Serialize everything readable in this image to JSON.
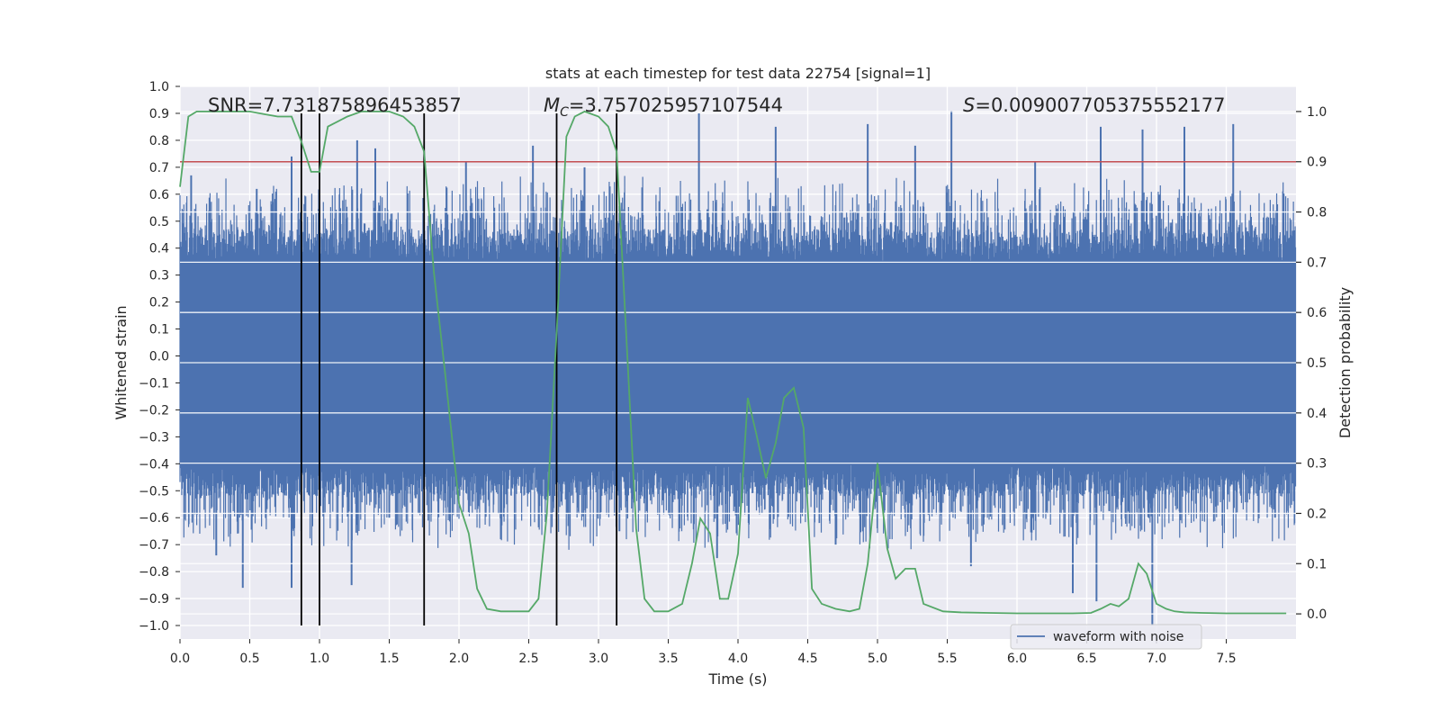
{
  "chart_data": {
    "type": "line",
    "title": "stats at each timestep for test data 22754 [signal=1]",
    "xlabel": "Time (s)",
    "ylabel_left": "Whitened strain",
    "ylabel_right": "Detection probability",
    "xlim": [
      0.0,
      8.0
    ],
    "ylim_left": [
      -1.05,
      1.0
    ],
    "ylim_right": [
      -0.05,
      1.05
    ],
    "grid": true,
    "x_ticks": [
      0.0,
      0.5,
      1.0,
      1.5,
      2.0,
      2.5,
      3.0,
      3.5,
      4.0,
      4.5,
      5.0,
      5.5,
      6.0,
      6.5,
      7.0,
      7.5
    ],
    "x_tick_labels": [
      "0.0",
      "0.5",
      "1.0",
      "1.5",
      "2.0",
      "2.5",
      "3.0",
      "3.5",
      "4.0",
      "4.5",
      "5.0",
      "5.5",
      "6.0",
      "6.5",
      "7.0",
      "7.5"
    ],
    "y_left_ticks": [
      1.0,
      0.9,
      0.8,
      0.7,
      0.6,
      0.5,
      0.4,
      0.3,
      0.2,
      0.1,
      0.0,
      -0.1,
      -0.2,
      -0.3,
      -0.4,
      -0.5,
      -0.6,
      -0.7,
      -0.8,
      -0.9,
      -1.0
    ],
    "y_left_tick_labels": [
      "1.0",
      "0.9",
      "0.8",
      "0.7",
      "0.6",
      "0.5",
      "0.4",
      "0.3",
      "0.2",
      "0.1",
      "0.0",
      "−0.1",
      "−0.2",
      "−0.3",
      "−0.4",
      "−0.5",
      "−0.6",
      "−0.7",
      "−0.8",
      "−0.9",
      "−1.0"
    ],
    "y_right_ticks": [
      1.0,
      0.9,
      0.8,
      0.7,
      0.6,
      0.5,
      0.4,
      0.3,
      0.2,
      0.1,
      0.0
    ],
    "y_right_tick_labels": [
      "1.0",
      "0.9",
      "0.8",
      "0.7",
      "0.6",
      "0.5",
      "0.4",
      "0.3",
      "0.2",
      "0.1",
      "0.0"
    ],
    "annotations": {
      "snr": "SNR=7.731875896453857",
      "mc_symbol": "M",
      "mc_subscript": "C",
      "mc_value": "=3.757025957107544",
      "s_symbol": "S",
      "s_value": "=0.009007705375552177"
    },
    "threshold": {
      "value": 0.9,
      "axis": "right",
      "color": "#c44e52"
    },
    "vertical_markers": [
      0.87,
      1.0,
      1.75,
      2.7,
      3.13
    ],
    "series": [
      {
        "name": "waveform with noise",
        "axis": "left",
        "color": "#4c72b0",
        "style": "dense-noise",
        "core_amplitude": 0.35,
        "spikes": [
          {
            "x": 0.08,
            "y": 0.67
          },
          {
            "x": 0.26,
            "y": -0.74
          },
          {
            "x": 0.45,
            "y": -0.86
          },
          {
            "x": 0.55,
            "y": 0.62
          },
          {
            "x": 0.8,
            "y": 0.74
          },
          {
            "x": 0.8,
            "y": -0.86
          },
          {
            "x": 1.27,
            "y": 0.8
          },
          {
            "x": 1.23,
            "y": -0.85
          },
          {
            "x": 1.4,
            "y": 0.77
          },
          {
            "x": 1.5,
            "y": -0.6
          },
          {
            "x": 2.05,
            "y": 0.72
          },
          {
            "x": 2.3,
            "y": -0.68
          },
          {
            "x": 2.53,
            "y": 0.78
          },
          {
            "x": 2.9,
            "y": 0.7
          },
          {
            "x": 3.15,
            "y": -0.65
          },
          {
            "x": 3.72,
            "y": 0.9
          },
          {
            "x": 3.85,
            "y": -0.75
          },
          {
            "x": 4.27,
            "y": 0.85
          },
          {
            "x": 4.7,
            "y": -0.7
          },
          {
            "x": 4.93,
            "y": 0.86
          },
          {
            "x": 5.27,
            "y": 0.78
          },
          {
            "x": 5.53,
            "y": 0.91
          },
          {
            "x": 5.67,
            "y": -0.78
          },
          {
            "x": 6.13,
            "y": 0.72
          },
          {
            "x": 6.4,
            "y": -0.88
          },
          {
            "x": 6.57,
            "y": -0.91
          },
          {
            "x": 6.6,
            "y": 0.85
          },
          {
            "x": 6.9,
            "y": 0.84
          },
          {
            "x": 6.97,
            "y": -1.0
          },
          {
            "x": 7.2,
            "y": 0.85
          },
          {
            "x": 7.55,
            "y": 0.86
          },
          {
            "x": 7.85,
            "y": -0.6
          }
        ]
      },
      {
        "name": "Detection probability",
        "axis": "right",
        "color": "#55a868",
        "style": "line",
        "x": [
          0.0,
          0.06,
          0.12,
          0.2,
          0.3,
          0.4,
          0.5,
          0.6,
          0.7,
          0.8,
          0.87,
          0.94,
          1.0,
          1.06,
          1.13,
          1.2,
          1.3,
          1.4,
          1.5,
          1.6,
          1.68,
          1.75,
          1.82,
          1.9,
          2.0,
          2.07,
          2.13,
          2.2,
          2.3,
          2.4,
          2.5,
          2.57,
          2.63,
          2.7,
          2.77,
          2.83,
          2.9,
          3.0,
          3.07,
          3.13,
          3.2,
          3.27,
          3.33,
          3.4,
          3.5,
          3.6,
          3.67,
          3.73,
          3.8,
          3.87,
          3.93,
          4.0,
          4.07,
          4.13,
          4.2,
          4.27,
          4.33,
          4.4,
          4.47,
          4.53,
          4.6,
          4.7,
          4.8,
          4.87,
          4.93,
          5.0,
          5.07,
          5.13,
          5.2,
          5.27,
          5.33,
          5.47,
          5.6,
          5.8,
          6.0,
          6.2,
          6.4,
          6.53,
          6.6,
          6.67,
          6.73,
          6.8,
          6.87,
          6.93,
          7.0,
          7.07,
          7.13,
          7.2,
          7.33,
          7.5,
          7.67,
          7.8,
          7.93
        ],
        "y": [
          0.85,
          0.99,
          1.0,
          1.0,
          1.0,
          1.0,
          1.0,
          0.995,
          0.99,
          0.99,
          0.94,
          0.88,
          0.88,
          0.97,
          0.98,
          0.99,
          1.0,
          1.0,
          1.0,
          0.99,
          0.97,
          0.92,
          0.68,
          0.48,
          0.22,
          0.16,
          0.05,
          0.01,
          0.005,
          0.005,
          0.005,
          0.03,
          0.2,
          0.56,
          0.95,
          0.99,
          1.0,
          0.99,
          0.97,
          0.92,
          0.55,
          0.17,
          0.03,
          0.005,
          0.005,
          0.02,
          0.1,
          0.19,
          0.16,
          0.03,
          0.03,
          0.12,
          0.43,
          0.36,
          0.27,
          0.34,
          0.43,
          0.45,
          0.37,
          0.05,
          0.02,
          0.01,
          0.005,
          0.01,
          0.1,
          0.3,
          0.13,
          0.07,
          0.09,
          0.09,
          0.02,
          0.005,
          0.003,
          0.002,
          0.001,
          0.001,
          0.001,
          0.002,
          0.01,
          0.02,
          0.015,
          0.03,
          0.1,
          0.08,
          0.02,
          0.01,
          0.005,
          0.003,
          0.002,
          0.001,
          0.001,
          0.001,
          0.001
        ]
      }
    ],
    "legend": {
      "entries": [
        "waveform with noise"
      ],
      "location": "bottom-right"
    }
  }
}
